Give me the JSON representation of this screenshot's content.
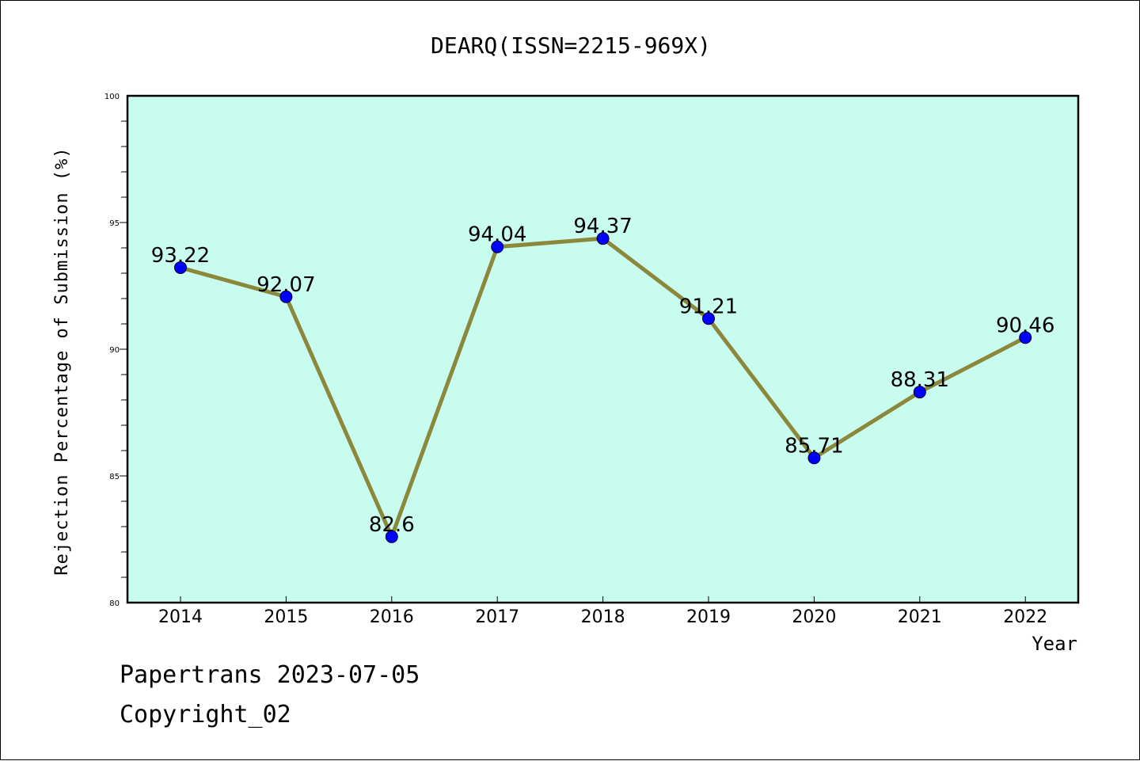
{
  "footer": {
    "line1": "Papertrans 2023-07-05",
    "line2": "Copyright_02"
  },
  "colors": {
    "plot_background": "#c8fcee",
    "line": "#8b873b",
    "marker": "#0000ff",
    "axis": "#000000"
  },
  "chart_data": {
    "type": "line",
    "title": "DEARQ(ISSN=2215-969X)",
    "xlabel": "Year",
    "ylabel": "Rejection Percentage of Submission (%)",
    "categories": [
      "2014",
      "2015",
      "2016",
      "2017",
      "2018",
      "2019",
      "2020",
      "2021",
      "2022"
    ],
    "series": [
      {
        "values": [
          93.22,
          92.07,
          82.6,
          94.04,
          94.37,
          91.21,
          85.71,
          88.31,
          90.46
        ],
        "labels": [
          "93.22",
          "92.07",
          "82.6",
          "94.04",
          "94.37",
          "91.21",
          "85.71",
          "88.31",
          "90.46"
        ]
      }
    ],
    "ylim": [
      80,
      100
    ],
    "yticks": [
      "80",
      "85",
      "90",
      "95",
      "100"
    ],
    "grid": false,
    "marker": "circle"
  }
}
